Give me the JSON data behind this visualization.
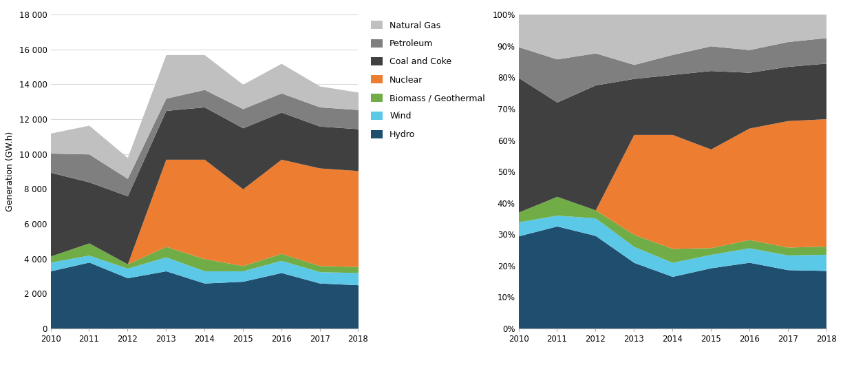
{
  "years": [
    2010,
    2011,
    2012,
    2013,
    2014,
    2015,
    2016,
    2017,
    2018
  ],
  "hydro": [
    3300,
    3800,
    2900,
    3300,
    2600,
    2700,
    3200,
    2600,
    2500
  ],
  "wind": [
    500,
    400,
    550,
    800,
    700,
    600,
    700,
    650,
    700
  ],
  "biomass": [
    350,
    700,
    250,
    600,
    700,
    300,
    400,
    350,
    350
  ],
  "nuclear": [
    0,
    0,
    0,
    5000,
    5700,
    4400,
    5400,
    5600,
    5500
  ],
  "coal": [
    4800,
    3500,
    3900,
    2800,
    3000,
    3500,
    2700,
    2400,
    2400
  ],
  "petroleum": [
    1100,
    1600,
    1000,
    700,
    1000,
    1100,
    1100,
    1100,
    1100
  ],
  "natgas": [
    1150,
    1650,
    1200,
    2500,
    2000,
    1400,
    1700,
    1200,
    1000
  ],
  "colors": {
    "hydro": "#1f4e6e",
    "wind": "#5bc8e8",
    "biomass": "#70ad47",
    "nuclear": "#ed7d31",
    "coal": "#404040",
    "petroleum": "#7f7f7f",
    "natgas": "#c0c0c0"
  },
  "legend_labels": {
    "natgas": "Natural Gas",
    "petroleum": "Petroleum",
    "coal": "Coal and Coke",
    "nuclear": "Nuclear",
    "biomass": "Biomass / Geothermal",
    "wind": "Wind",
    "hydro": "Hydro"
  },
  "ylabel": "Generation (GW.h)",
  "ylim_abs": [
    0,
    18000
  ],
  "yticks_abs": [
    0,
    2000,
    4000,
    6000,
    8000,
    10000,
    12000,
    14000,
    16000,
    18000
  ],
  "ytick_labels_abs": [
    "0",
    "2 000",
    "4 000",
    "6 000",
    "8 000",
    "10 000",
    "12 000",
    "14 000",
    "16 000",
    "18 000"
  ],
  "grid_color": "#d9d9d9",
  "background_color": "#ffffff",
  "axis_fontsize": 9,
  "tick_fontsize": 8.5,
  "legend_fontsize": 9
}
